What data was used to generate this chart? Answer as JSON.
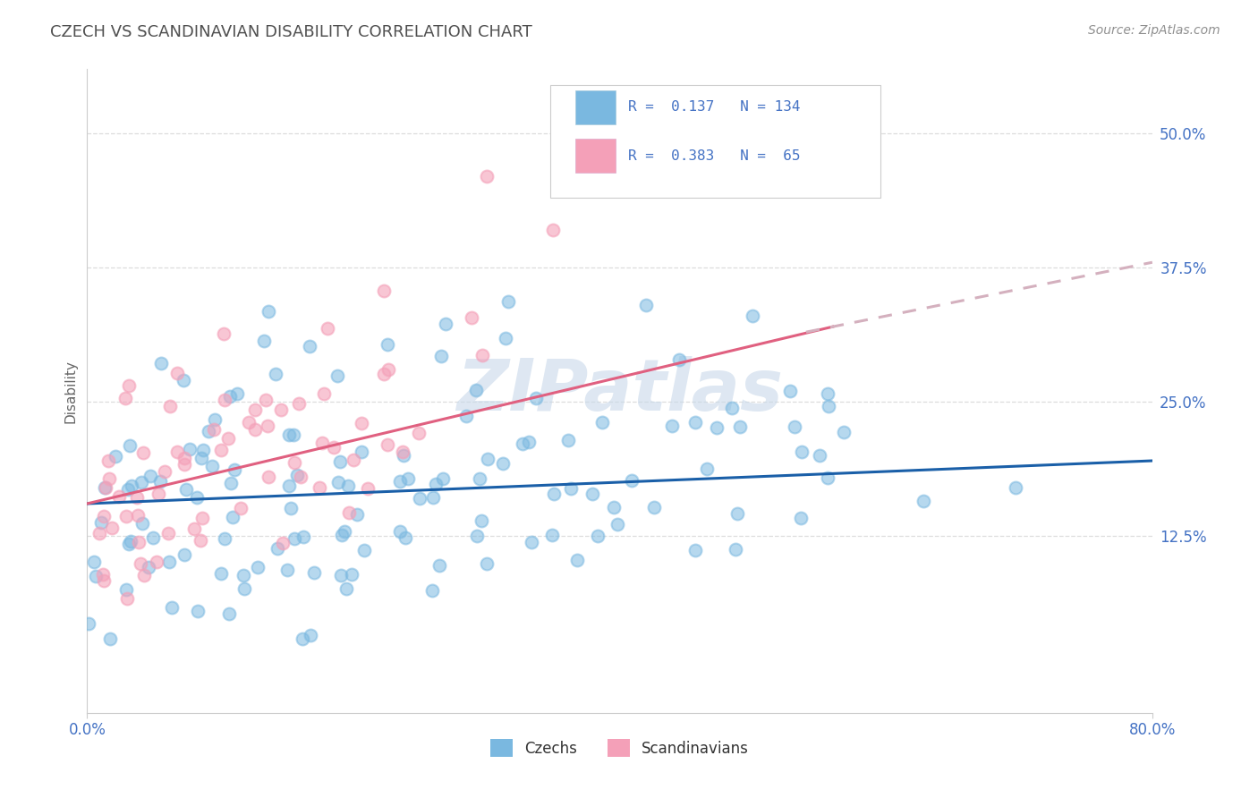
{
  "title": "CZECH VS SCANDINAVIAN DISABILITY CORRELATION CHART",
  "source_text": "Source: ZipAtlas.com",
  "ylabel": "Disability",
  "xlim": [
    0.0,
    0.8
  ],
  "ylim": [
    -0.04,
    0.56
  ],
  "yticks": [
    0.125,
    0.25,
    0.375,
    0.5
  ],
  "ytick_labels": [
    "12.5%",
    "25.0%",
    "37.5%",
    "50.0%"
  ],
  "xticks": [
    0.0,
    0.8
  ],
  "xtick_labels": [
    "0.0%",
    "80.0%"
  ],
  "czechs_color": "#7ab8e0",
  "scandinavians_color": "#f4a0b8",
  "czechs_line_color": "#1a5fa8",
  "scandinavians_line_color": "#e06080",
  "scandinavians_dash_color": "#d4b0be",
  "R_czechs": 0.137,
  "N_czechs": 134,
  "R_scandinavians": 0.383,
  "N_scandinavians": 65,
  "watermark": "ZIPatlas",
  "watermark_color": "#c8d8ea",
  "grid_color": "#dddddd",
  "background_color": "#ffffff",
  "title_color": "#505050",
  "source_color": "#909090",
  "tick_label_color": "#4472c4",
  "legend_label_czechs": "Czechs",
  "legend_label_scandinavians": "Scandinavians",
  "czechs_line_start": 0.155,
  "czechs_line_end": 0.195,
  "scandinavians_line_start": 0.155,
  "scandinavians_line_end_solid": 0.32,
  "scandinavians_line_end_dash": 0.38
}
